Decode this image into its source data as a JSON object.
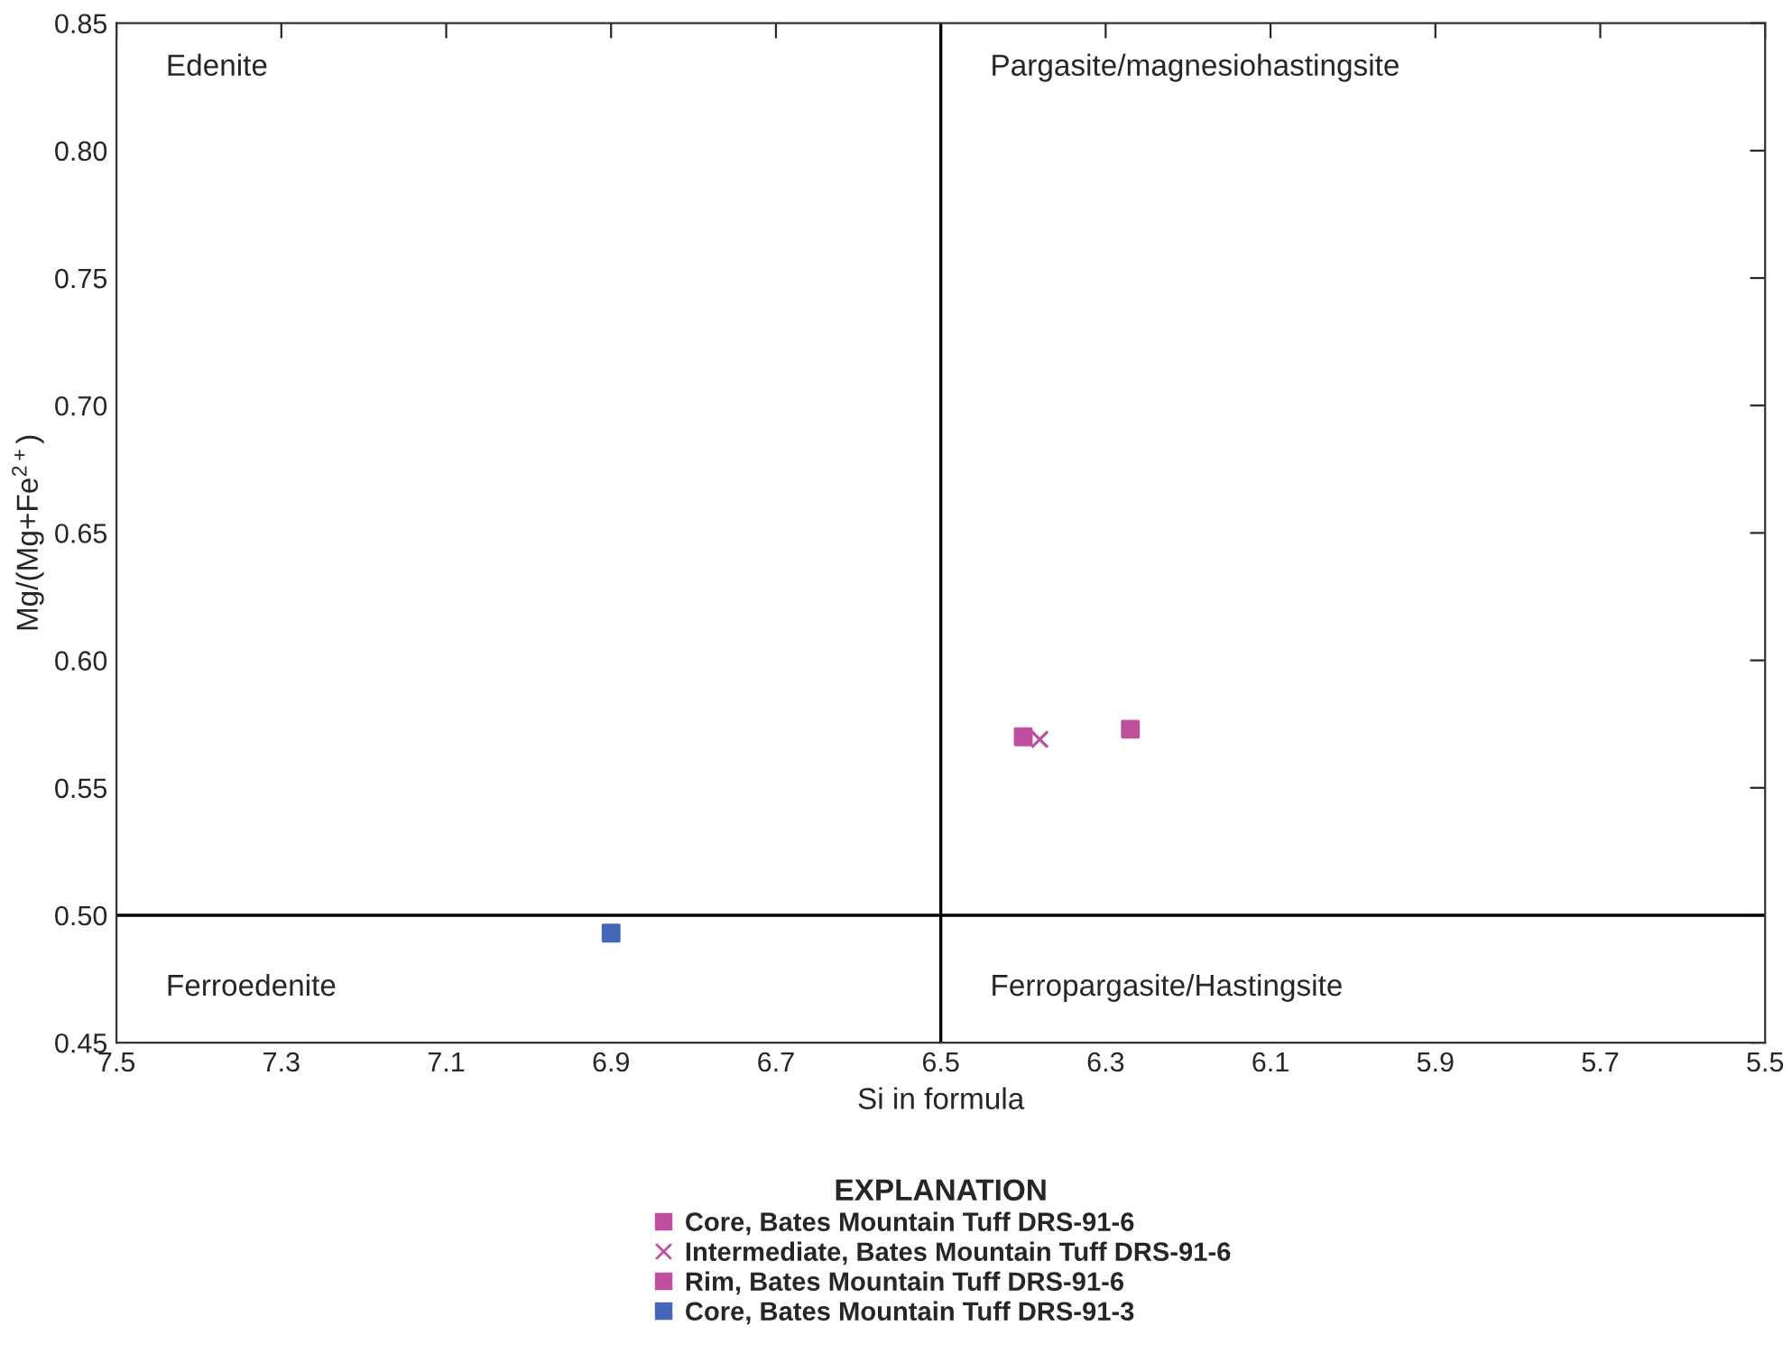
{
  "chart_data": {
    "type": "scatter",
    "xlabel": "Si in formula",
    "ylabel": "Mg/(Mg+Fe$^{2+}$)",
    "legend_title": "EXPLANATION",
    "xlim": [
      7.5,
      5.5
    ],
    "xticks": [
      7.5,
      7.3,
      7.1,
      6.9,
      6.7,
      6.5,
      6.3,
      6.1,
      5.9,
      5.7,
      5.5
    ],
    "ylim": [
      0.45,
      0.85
    ],
    "yticks": [
      {
        "value": 0.45,
        "label": "0.45"
      },
      {
        "value": 0.5,
        "label": "0.50"
      },
      {
        "value": 0.55,
        "label": "0.55"
      },
      {
        "value": 0.6,
        "label": "0.60"
      },
      {
        "value": 0.65,
        "label": "0.65"
      },
      {
        "value": 0.7,
        "label": "0.70"
      },
      {
        "value": 0.75,
        "label": "0.75"
      },
      {
        "value": 0.8,
        "label": "0.80"
      },
      {
        "value": 0.85,
        "label": "0.85"
      }
    ],
    "grid": false,
    "legend": "bottom",
    "ref_lines": [
      {
        "axis": "x",
        "value": 6.5,
        "color": "#000000"
      },
      {
        "axis": "y",
        "value": 0.5,
        "color": "#000000"
      }
    ],
    "annotations": [
      "Edenite",
      "Pargasite/magnesiohastingsite",
      "Ferroedenite",
      "Ferropargasite/Hastingsite"
    ],
    "series": [
      {
        "name": "Core, Bates Mountain Tuff DRS-91-6",
        "color": "#c04fa0",
        "marker": "square",
        "x": [
          6.27
        ],
        "values": [
          0.573
        ]
      },
      {
        "name": "Intermediate, Bates Mountain Tuff DRS-91-6",
        "color": "#c04fa0",
        "marker": "cross",
        "x": [
          6.38
        ],
        "values": [
          0.569
        ]
      },
      {
        "name": "Rim, Bates Mountain Tuff DRS-91-6",
        "color": "#c04fa0",
        "marker": "square",
        "x": [
          6.4
        ],
        "values": [
          0.57
        ]
      },
      {
        "name": "Core, Bates Mountain Tuff DRS-91-3",
        "color": "#4466b8",
        "marker": "square",
        "x": [
          6.9
        ],
        "values": [
          0.493
        ]
      }
    ]
  }
}
